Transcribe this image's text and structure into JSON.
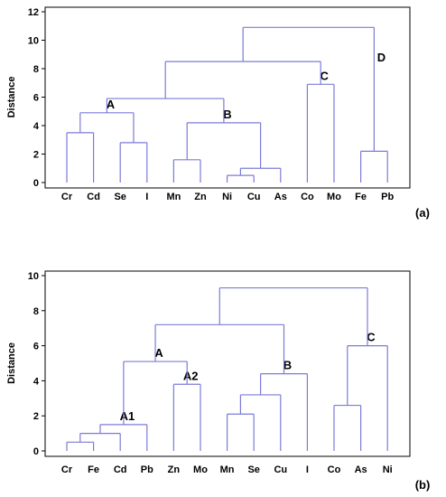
{
  "chart_data": [
    {
      "type": "dendrogram",
      "panel_label": "(a)",
      "ylabel": "Distance",
      "ylim": [
        0,
        12
      ],
      "yticks": [
        0,
        2,
        4,
        6,
        8,
        10,
        12
      ],
      "leaves": [
        "Cr",
        "Cd",
        "Se",
        "I",
        "Mn",
        "Zn",
        "Ni",
        "Cu",
        "As",
        "Co",
        "Mo",
        "Fe",
        "Pb"
      ],
      "merges": [
        {
          "left": "Ni",
          "right": "Cu",
          "height": 0.5
        },
        {
          "left": "m0",
          "right": "As",
          "height": 1.0
        },
        {
          "left": "Mn",
          "right": "Zn",
          "height": 1.6
        },
        {
          "left": "Fe",
          "right": "Pb",
          "height": 2.2
        },
        {
          "left": "Se",
          "right": "I",
          "height": 2.8
        },
        {
          "left": "Cr",
          "right": "Cd",
          "height": 3.5
        },
        {
          "left": "m2",
          "right": "m1",
          "height": 4.2,
          "label": "B"
        },
        {
          "left": "m5",
          "right": "m4",
          "height": 4.9,
          "label": "A"
        },
        {
          "left": "m7",
          "right": "m6",
          "height": 5.9
        },
        {
          "left": "Co",
          "right": "Mo",
          "height": 6.9,
          "label": "C"
        },
        {
          "left": "m8",
          "right": "m9",
          "height": 8.5
        },
        {
          "left": "m10",
          "right": "m3",
          "height": 10.9,
          "label": "D",
          "label_on": "right"
        }
      ],
      "cluster_labels": [
        "A",
        "B",
        "C",
        "D"
      ]
    },
    {
      "type": "dendrogram",
      "panel_label": "(b)",
      "ylabel": "Distance",
      "ylim": [
        0,
        10
      ],
      "yticks": [
        0,
        2,
        4,
        6,
        8,
        10
      ],
      "leaves": [
        "Cr",
        "Fe",
        "Cd",
        "Pb",
        "Zn",
        "Mo",
        "Mn",
        "Se",
        "Cu",
        "I",
        "Co",
        "As",
        "Ni"
      ],
      "merges": [
        {
          "left": "Cr",
          "right": "Fe",
          "height": 0.5
        },
        {
          "left": "m0",
          "right": "Cd",
          "height": 1.0
        },
        {
          "left": "m1",
          "right": "Pb",
          "height": 1.5,
          "label": "A1"
        },
        {
          "left": "Mn",
          "right": "Se",
          "height": 2.1
        },
        {
          "left": "Co",
          "right": "As",
          "height": 2.6
        },
        {
          "left": "m3",
          "right": "Cu",
          "height": 3.2
        },
        {
          "left": "Zn",
          "right": "Mo",
          "height": 3.8,
          "label": "A2"
        },
        {
          "left": "m5",
          "right": "I",
          "height": 4.4,
          "label": "B"
        },
        {
          "left": "m2",
          "right": "m6",
          "height": 5.1,
          "label": "A"
        },
        {
          "left": "m4",
          "right": "Ni",
          "height": 6.0,
          "label": "C"
        },
        {
          "left": "m8",
          "right": "m7",
          "height": 7.2
        },
        {
          "left": "m10",
          "right": "m9",
          "height": 9.3
        }
      ],
      "cluster_labels": [
        "A",
        "A1",
        "A2",
        "B",
        "C"
      ]
    }
  ],
  "colors": {
    "link": "#7b7bd8",
    "axis": "#000000"
  }
}
